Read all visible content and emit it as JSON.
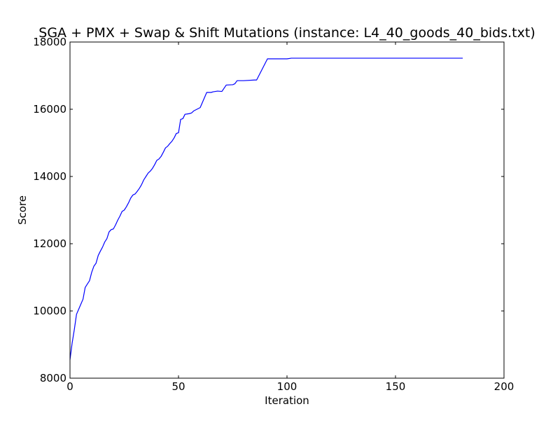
{
  "chart_data": {
    "type": "line",
    "title": "SGA + PMX + Swap & Shift Mutations (instance: L4_40_goods_40_bids.txt)",
    "xlabel": "Iteration",
    "ylabel": "Score",
    "xlim": [
      0,
      200
    ],
    "ylim": [
      8000,
      18000
    ],
    "xticks": [
      0,
      50,
      100,
      150,
      200
    ],
    "yticks": [
      8000,
      10000,
      12000,
      14000,
      16000,
      18000
    ],
    "grid": false,
    "series": [
      {
        "color": "#0000ff",
        "x": [
          0,
          1,
          2,
          3,
          4,
          5,
          6,
          7,
          8,
          9,
          10,
          11,
          12,
          13,
          14,
          15,
          16,
          17,
          18,
          19,
          20,
          21,
          22,
          23,
          24,
          25,
          26,
          27,
          28,
          29,
          30,
          31,
          32,
          33,
          34,
          35,
          36,
          37,
          38,
          39,
          40,
          41,
          42,
          43,
          44,
          45,
          46,
          47,
          48,
          49,
          50,
          51,
          52,
          53,
          54,
          55,
          56,
          57,
          60,
          63,
          65,
          66,
          67,
          68,
          70,
          72,
          75,
          76,
          77,
          79,
          80,
          85,
          86,
          91,
          92,
          100,
          102,
          103,
          181
        ],
        "y": [
          8550,
          9050,
          9450,
          9900,
          10050,
          10200,
          10350,
          10700,
          10800,
          10900,
          11150,
          11330,
          11420,
          11650,
          11780,
          11900,
          12050,
          12150,
          12350,
          12420,
          12440,
          12560,
          12700,
          12820,
          12960,
          13000,
          13100,
          13220,
          13360,
          13450,
          13480,
          13560,
          13650,
          13760,
          13900,
          14000,
          14100,
          14160,
          14240,
          14350,
          14480,
          14520,
          14600,
          14720,
          14850,
          14900,
          14980,
          15050,
          15150,
          15280,
          15300,
          15700,
          15720,
          15850,
          15860,
          15870,
          15890,
          15950,
          16050,
          16500,
          16500,
          16520,
          16530,
          16540,
          16530,
          16720,
          16730,
          16760,
          16850,
          16850,
          16850,
          16870,
          16870,
          17500,
          17500,
          17500,
          17520,
          17520,
          17520
        ]
      }
    ]
  }
}
